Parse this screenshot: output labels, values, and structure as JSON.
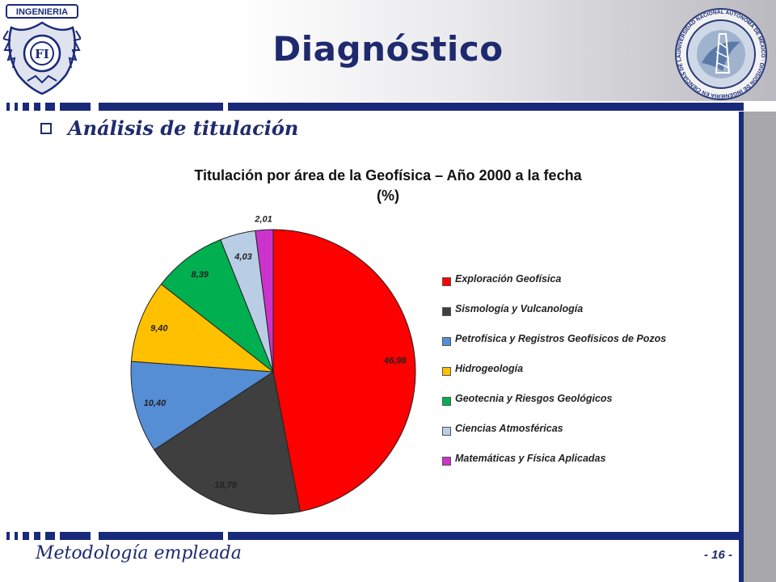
{
  "slide": {
    "title": "Diagnóstico",
    "subtitle": "Análisis de titulación",
    "footer_left": "Metodología empleada",
    "footer_right": "- 16 -",
    "colors": {
      "navy": "#1f2a6e",
      "side_bar": "#a8a8ac"
    }
  },
  "logos": {
    "left_text": "INGENIERIA",
    "left_monogram": "FI",
    "right_ring_text": "UNIVERSIDAD NACIONAL AUTÓNOMA DE MÉXICO · DIVISIÓN DE INGENIERÍA EN CIENCIAS DE LA TIERRA"
  },
  "chart_data": {
    "type": "pie",
    "title": "Titulación por área de la Geofísica – Año 2000 a la fecha",
    "title_line2": "(%)",
    "legend_position": "right",
    "slices": [
      {
        "label": "Exploración Geofísica",
        "value": 46.98,
        "display": "46,98",
        "color": "#ff0000"
      },
      {
        "label": "Sismología y Vulcanología",
        "value": 18.79,
        "display": "18,79",
        "color": "#3f3f3f"
      },
      {
        "label": "Petrofísica y Registros Geofísicos de Pozos",
        "value": 10.4,
        "display": "10,40",
        "color": "#558ed5"
      },
      {
        "label": "Hidrogeología",
        "value": 9.4,
        "display": "9,40",
        "color": "#ffc000"
      },
      {
        "label": "Geotecnia y Riesgos Geológicos",
        "value": 8.39,
        "display": "8,39",
        "color": "#00b050"
      },
      {
        "label": "Ciencias Atmosféricas",
        "value": 4.03,
        "display": "4,03",
        "color": "#b9cde5"
      },
      {
        "label": "Matemáticas y Física Aplicadas",
        "value": 2.01,
        "display": "2,01",
        "color": "#cc33cc"
      }
    ]
  }
}
